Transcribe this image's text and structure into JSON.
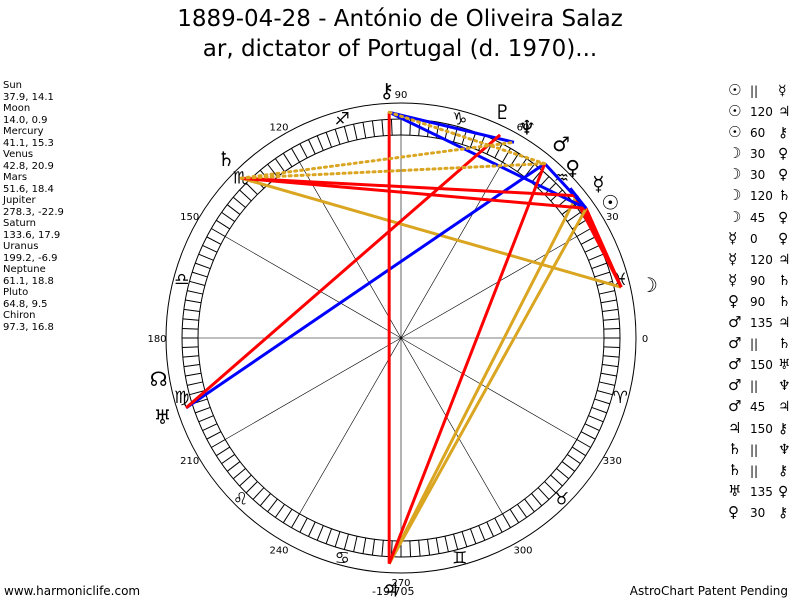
{
  "title_line1": "1889-04-28 - António de Oliveira Salaz",
  "title_line2": "ar, dictator of Portugal (d. 1970)...",
  "planets": [
    {
      "name": "Sun",
      "coords": "37.9, 14.1"
    },
    {
      "name": "Moon",
      "coords": "14.0, 0.9"
    },
    {
      "name": "Mercury",
      "coords": "41.1, 15.3"
    },
    {
      "name": "Venus",
      "coords": "42.8, 20.9"
    },
    {
      "name": "Mars",
      "coords": "51.6, 18.4"
    },
    {
      "name": "Jupiter",
      "coords": "278.3, -22.9"
    },
    {
      "name": "Saturn",
      "coords": "133.6, 17.9"
    },
    {
      "name": "Uranus",
      "coords": "199.2, -6.9"
    },
    {
      "name": "Neptune",
      "coords": "61.1, 18.8"
    },
    {
      "name": "Pluto",
      "coords": "64.8, 9.5"
    },
    {
      "name": "Chiron",
      "coords": "97.3, 16.8"
    }
  ],
  "aspects": [
    {
      "p1": "☉",
      "aspect": "||",
      "p2": "☿"
    },
    {
      "p1": "☉",
      "aspect": "120",
      "p2": "♃"
    },
    {
      "p1": "☉",
      "aspect": "60",
      "p2": "⚷"
    },
    {
      "p1": "☽",
      "aspect": "30",
      "p2": "♀"
    },
    {
      "p1": "☽",
      "aspect": "30",
      "p2": "♀"
    },
    {
      "p1": "☽",
      "aspect": "120",
      "p2": "♄"
    },
    {
      "p1": "☽",
      "aspect": "45",
      "p2": "♀"
    },
    {
      "p1": "☿",
      "aspect": "0",
      "p2": "♀"
    },
    {
      "p1": "☿",
      "aspect": "120",
      "p2": "♃"
    },
    {
      "p1": "☿",
      "aspect": "90",
      "p2": "♄"
    },
    {
      "p1": "♀",
      "aspect": "90",
      "p2": "♄"
    },
    {
      "p1": "♂",
      "aspect": "135",
      "p2": "♃"
    },
    {
      "p1": "♂",
      "aspect": "||",
      "p2": "♄"
    },
    {
      "p1": "♂",
      "aspect": "150",
      "p2": "♅"
    },
    {
      "p1": "♂",
      "aspect": "||",
      "p2": "♆"
    },
    {
      "p1": "♂",
      "aspect": "45",
      "p2": "♃"
    },
    {
      "p1": "♃",
      "aspect": "150",
      "p2": "⚷"
    },
    {
      "p1": "♄",
      "aspect": "||",
      "p2": "♆"
    },
    {
      "p1": "♄",
      "aspect": "||",
      "p2": "⚷"
    },
    {
      "p1": "♅",
      "aspect": "135",
      "p2": "♀"
    },
    {
      "p1": "♀",
      "aspect": "30",
      "p2": "⚷"
    }
  ],
  "wheel": {
    "degree_labels": [
      "0",
      "30",
      "60",
      "90",
      "120",
      "150",
      "180",
      "210",
      "240",
      "270",
      "300",
      "330"
    ],
    "zodiac_glyphs": [
      "♓",
      "♒",
      "♑",
      "♐",
      "♏",
      "♎",
      "♍",
      "♌",
      "♋",
      "♊",
      "♉",
      "♈"
    ],
    "planet_glyphs": {
      "sun": "☉",
      "moon": "☽",
      "mercury": "☿",
      "venus": "♀",
      "mars": "♂",
      "jupiter": "♃",
      "saturn": "♄",
      "uranus": "♅",
      "neptune": "♆",
      "pluto": "♇",
      "chiron": "⚷",
      "node": "☊"
    },
    "colors": {
      "red": "#ff0000",
      "blue": "#0000ff",
      "gold": "#daa520",
      "ring": "#000000"
    }
  },
  "footer_left": "www.harmoniclife.com",
  "footer_center": "-19,705",
  "footer_right": "AstroChart Patent Pending"
}
